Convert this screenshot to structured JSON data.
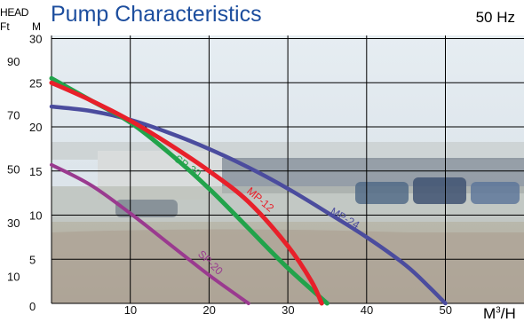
{
  "chart_data": {
    "type": "line",
    "title": "Pump Characteristics",
    "subtitle": "50 Hz",
    "xlabel": "M³/H",
    "ylabel": "HEAD",
    "ylabel_left_unit": "Ft",
    "ylabel_right_unit": "M",
    "xlim": [
      0,
      60
    ],
    "ylim": [
      0,
      30
    ],
    "x_ticks": [
      "10",
      "20",
      "30",
      "40",
      "50"
    ],
    "y_ticks_m": [
      "0",
      "5",
      "10",
      "15",
      "20",
      "25",
      "30"
    ],
    "y_ticks_ft": [
      "10",
      "30",
      "50",
      "70",
      "90"
    ],
    "grid": true,
    "background": "photo of buildings and parked cars",
    "series": [
      {
        "name": "SP-20",
        "label": "SP-20",
        "color": "#9a3a8f",
        "x": [
          0,
          5,
          10,
          15,
          20,
          25
        ],
        "y": [
          15.7,
          13.4,
          10.2,
          6.7,
          3.2,
          0
        ]
      },
      {
        "name": "SP-30",
        "label": "SP-30",
        "color": "#22a34b",
        "x": [
          0,
          5,
          10,
          15,
          20,
          25,
          30,
          35
        ],
        "y": [
          25.5,
          23.0,
          20.5,
          17.0,
          13.0,
          8.5,
          4.0,
          0
        ]
      },
      {
        "name": "MP-12",
        "label": "MP-12",
        "color": "#e8202a",
        "x": [
          0,
          5,
          10,
          15,
          20,
          25,
          30,
          33,
          34.3
        ],
        "y": [
          25.0,
          23.0,
          20.7,
          18.0,
          15.0,
          11.5,
          6.5,
          2.5,
          0
        ]
      },
      {
        "name": "MP-24",
        "label": "MP-24",
        "color": "#4b4c9e",
        "x": [
          0,
          5,
          10,
          15,
          20,
          25,
          30,
          35,
          40,
          45,
          48,
          50
        ],
        "y": [
          22.3,
          21.8,
          20.8,
          19.3,
          17.5,
          15.4,
          13.0,
          10.3,
          7.5,
          4.3,
          1.8,
          0
        ]
      }
    ]
  }
}
